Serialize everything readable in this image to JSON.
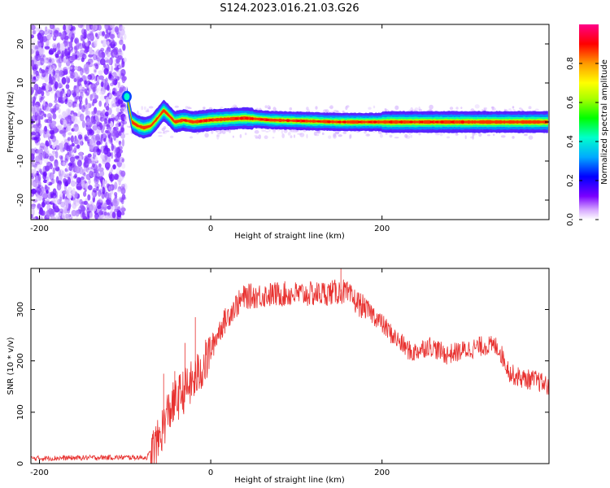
{
  "figure": {
    "title": "S124.2023.016.21.03.G26"
  },
  "chart_data": [
    {
      "type": "heatmap",
      "xlabel": "Height of straight line (km)",
      "ylabel": "Frequency (Hz)",
      "xlim": [
        -210,
        395
      ],
      "ylim": [
        -25,
        25
      ],
      "xticks": [
        -200,
        0,
        200
      ],
      "yticks": [
        -20,
        -10,
        0,
        10,
        20
      ],
      "colorbar": {
        "label": "Normalized spectral amplitude",
        "range": [
          0,
          1
        ],
        "ticks": [
          0.0,
          0.2,
          0.4,
          0.6,
          0.8
        ]
      },
      "ridge": [
        {
          "x": -98,
          "y": 6.5
        },
        {
          "x": -92,
          "y": 0
        },
        {
          "x": -85,
          "y": -1
        },
        {
          "x": -78,
          "y": -1.5
        },
        {
          "x": -70,
          "y": -1
        },
        {
          "x": -62,
          "y": 1
        },
        {
          "x": -55,
          "y": 3
        },
        {
          "x": -48,
          "y": 1.5
        },
        {
          "x": -42,
          "y": 0
        },
        {
          "x": -32,
          "y": 0.5
        },
        {
          "x": -20,
          "y": 0
        },
        {
          "x": 0,
          "y": 0.5
        },
        {
          "x": 40,
          "y": 1
        },
        {
          "x": 70,
          "y": 0.5
        },
        {
          "x": 150,
          "y": 0
        },
        {
          "x": 250,
          "y": 0
        },
        {
          "x": 395,
          "y": 0
        }
      ]
    },
    {
      "type": "line",
      "xlabel": "Height of straight line (km)",
      "ylabel": "SNR (10 * v/v)",
      "xlim": [
        -210,
        395
      ],
      "ylim": [
        0,
        380
      ],
      "xticks": [
        -200,
        0,
        200
      ],
      "yticks": [
        0,
        100,
        200,
        300
      ],
      "series": [
        {
          "color": "#e8312f",
          "points": [
            {
              "x": -210,
              "y": 10
            },
            {
              "x": -120,
              "y": 12
            },
            {
              "x": -75,
              "y": 12
            },
            {
              "x": -62,
              "y": 40
            },
            {
              "x": -50,
              "y": 100
            },
            {
              "x": -35,
              "y": 135
            },
            {
              "x": -20,
              "y": 160
            },
            {
              "x": -5,
              "y": 200
            },
            {
              "x": 10,
              "y": 260
            },
            {
              "x": 25,
              "y": 300
            },
            {
              "x": 40,
              "y": 325
            },
            {
              "x": 80,
              "y": 330
            },
            {
              "x": 120,
              "y": 330
            },
            {
              "x": 155,
              "y": 335
            },
            {
              "x": 170,
              "y": 315
            },
            {
              "x": 190,
              "y": 290
            },
            {
              "x": 215,
              "y": 245
            },
            {
              "x": 235,
              "y": 215
            },
            {
              "x": 255,
              "y": 230
            },
            {
              "x": 275,
              "y": 212
            },
            {
              "x": 295,
              "y": 220
            },
            {
              "x": 320,
              "y": 230
            },
            {
              "x": 335,
              "y": 228
            },
            {
              "x": 350,
              "y": 175
            },
            {
              "x": 365,
              "y": 165
            },
            {
              "x": 380,
              "y": 162
            },
            {
              "x": 395,
              "y": 150
            }
          ]
        }
      ]
    }
  ]
}
